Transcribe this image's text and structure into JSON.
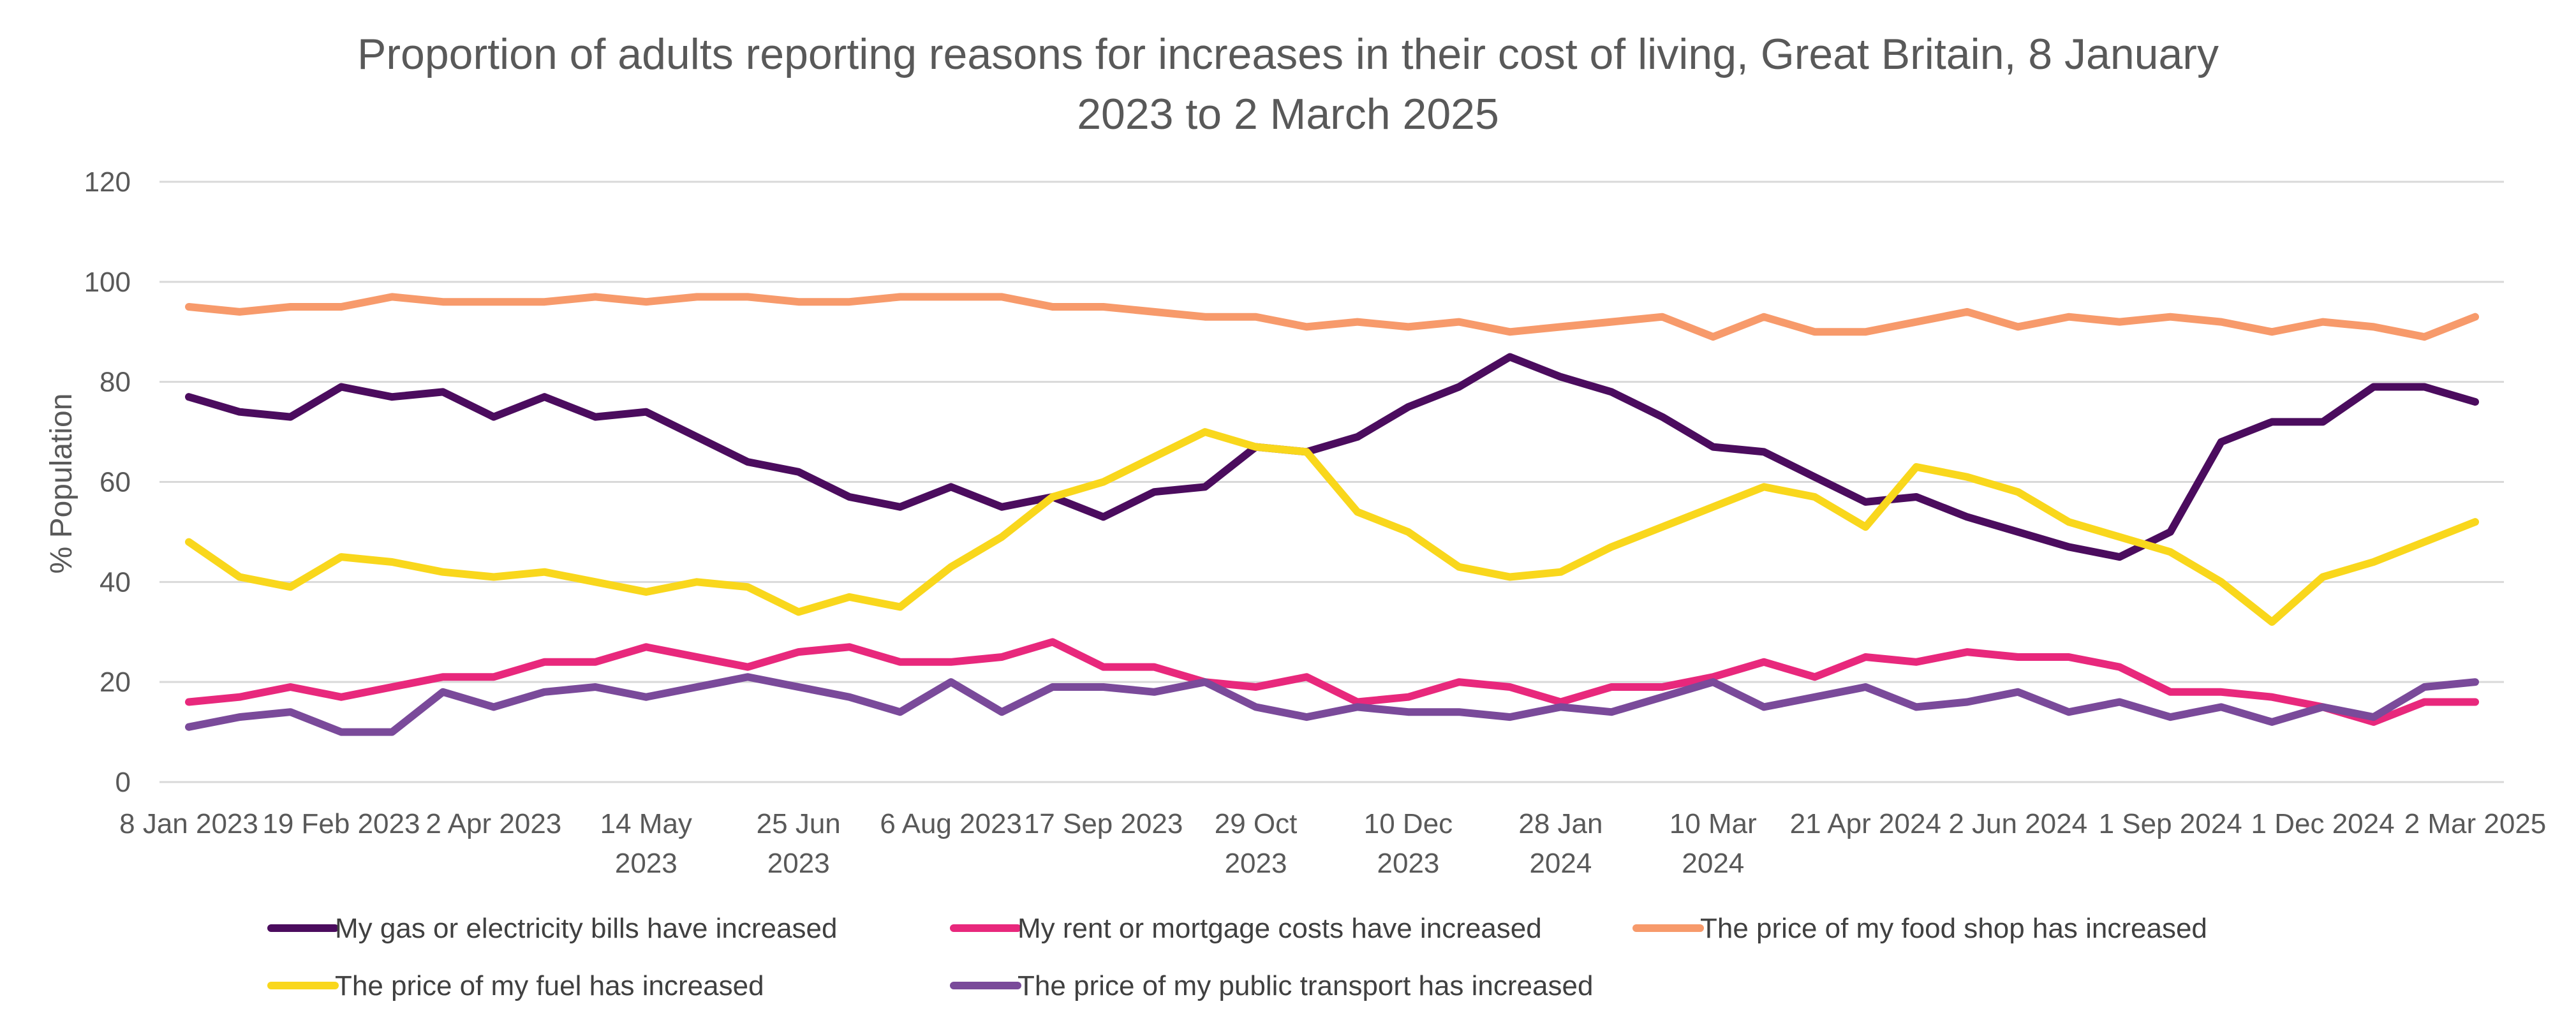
{
  "chart_data": {
    "type": "line",
    "title": "Proportion of adults reporting reasons for increases in their cost of living, Great Britain, 8 January 2023 to 2 March 2025",
    "title_lines": [
      "Proportion of adults reporting reasons for increases in their cost of living, Great Britain, 8 January",
      "2023 to 2 March 2025"
    ],
    "ylabel": "% Population",
    "xlabel": "",
    "ylim": [
      0,
      120
    ],
    "yticks": [
      0,
      20,
      40,
      60,
      80,
      100,
      120
    ],
    "grid": true,
    "legend_position": "bottom",
    "x_tick_labels": [
      {
        "index": 0,
        "lines": [
          "8 Jan 2023"
        ]
      },
      {
        "index": 3,
        "lines": [
          "19 Feb 2023"
        ]
      },
      {
        "index": 6,
        "lines": [
          "2 Apr 2023"
        ]
      },
      {
        "index": 9,
        "lines": [
          "14 May",
          "2023"
        ]
      },
      {
        "index": 12,
        "lines": [
          "25 Jun",
          "2023"
        ]
      },
      {
        "index": 15,
        "lines": [
          "6 Aug 2023"
        ]
      },
      {
        "index": 18,
        "lines": [
          "17 Sep 2023"
        ]
      },
      {
        "index": 21,
        "lines": [
          "29 Oct",
          "2023"
        ]
      },
      {
        "index": 24,
        "lines": [
          "10 Dec",
          "2023"
        ]
      },
      {
        "index": 27,
        "lines": [
          "28 Jan",
          "2024"
        ]
      },
      {
        "index": 30,
        "lines": [
          "10 Mar",
          "2024"
        ]
      },
      {
        "index": 33,
        "lines": [
          "21 Apr 2024"
        ]
      },
      {
        "index": 36,
        "lines": [
          "2 Jun 2024"
        ]
      },
      {
        "index": 39,
        "lines": [
          "1 Sep 2024"
        ]
      },
      {
        "index": 42,
        "lines": [
          "1 Dec 2024"
        ]
      },
      {
        "index": 45,
        "lines": [
          "2 Mar 2025"
        ]
      }
    ],
    "series": [
      {
        "name": "My gas or electricity bills have increased",
        "color": "#4B0C5E",
        "values": [
          77,
          74,
          73,
          79,
          77,
          78,
          73,
          77,
          73,
          74,
          69,
          64,
          62,
          57,
          55,
          59,
          55,
          57,
          53,
          58,
          59,
          67,
          66,
          69,
          75,
          79,
          85,
          81,
          78,
          73,
          67,
          66,
          61,
          56,
          57,
          53,
          50,
          47,
          45,
          50,
          68,
          72,
          72,
          79,
          79,
          76
        ]
      },
      {
        "name": "My rent or mortgage costs have increased",
        "color": "#E8287C",
        "values": [
          16,
          17,
          19,
          17,
          19,
          21,
          21,
          24,
          24,
          27,
          25,
          23,
          26,
          27,
          24,
          24,
          25,
          28,
          23,
          23,
          20,
          19,
          21,
          16,
          17,
          20,
          19,
          16,
          19,
          19,
          21,
          24,
          21,
          25,
          24,
          26,
          25,
          25,
          23,
          18,
          18,
          17,
          15,
          12,
          16,
          16
        ]
      },
      {
        "name": "The price of my food shop has increased",
        "color": "#F79A6B",
        "values": [
          95,
          94,
          95,
          95,
          97,
          96,
          96,
          96,
          97,
          96,
          97,
          97,
          96,
          96,
          97,
          97,
          97,
          95,
          95,
          94,
          93,
          93,
          91,
          92,
          91,
          92,
          90,
          91,
          92,
          93,
          89,
          93,
          90,
          90,
          92,
          94,
          91,
          93,
          92,
          93,
          92,
          90,
          92,
          91,
          89,
          93
        ]
      },
      {
        "name": "The price of my fuel has increased",
        "color": "#F9D71C",
        "values": [
          48,
          41,
          39,
          45,
          44,
          42,
          41,
          42,
          40,
          38,
          40,
          39,
          34,
          37,
          35,
          43,
          49,
          57,
          60,
          65,
          70,
          67,
          66,
          54,
          50,
          43,
          41,
          42,
          47,
          51,
          55,
          59,
          57,
          51,
          63,
          61,
          58,
          52,
          49,
          46,
          40,
          32,
          41,
          44,
          48,
          52
        ]
      },
      {
        "name": "The price of my public transport has increased",
        "color": "#7A4A9A",
        "values": [
          11,
          13,
          14,
          10,
          10,
          18,
          15,
          18,
          19,
          17,
          19,
          21,
          19,
          17,
          14,
          20,
          14,
          19,
          19,
          18,
          20,
          15,
          13,
          15,
          14,
          14,
          13,
          15,
          14,
          17,
          20,
          15,
          17,
          19,
          15,
          16,
          18,
          14,
          16,
          13,
          15,
          12,
          15,
          13,
          19,
          20
        ]
      }
    ]
  }
}
